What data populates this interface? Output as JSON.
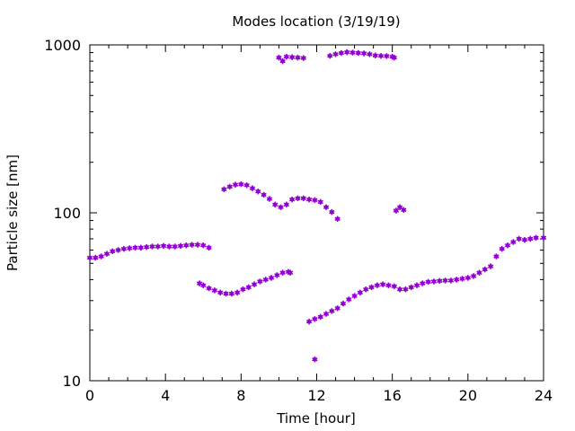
{
  "chart_data": {
    "type": "scatter",
    "title": "Modes location (3/19/19)",
    "xlabel": "Time [hour]",
    "ylabel": "Particle size [nm]",
    "xlim": [
      0,
      24
    ],
    "ylim": [
      10,
      1000
    ],
    "yscale": "log",
    "grid": false,
    "x_ticks": [
      0,
      4,
      8,
      12,
      16,
      20,
      24
    ],
    "x_tick_labels": [
      "0",
      "4",
      "8",
      "12",
      "16",
      "20",
      "24"
    ],
    "y_ticks": [
      10,
      100,
      1000
    ],
    "y_tick_labels": [
      "10",
      "100",
      "1000"
    ],
    "marker_color": "#9400D3",
    "series": [
      {
        "points": [
          [
            0.0,
            54
          ],
          [
            0.3,
            54
          ],
          [
            0.6,
            55
          ],
          [
            0.9,
            57
          ],
          [
            1.2,
            59
          ],
          [
            1.5,
            60
          ],
          [
            1.8,
            61
          ],
          [
            2.1,
            61.5
          ],
          [
            2.4,
            62
          ],
          [
            2.7,
            62
          ],
          [
            3.0,
            62.5
          ],
          [
            3.3,
            63
          ],
          [
            3.6,
            63
          ],
          [
            3.9,
            63.5
          ],
          [
            4.2,
            63
          ],
          [
            4.5,
            63
          ],
          [
            4.8,
            63.5
          ],
          [
            5.1,
            64
          ],
          [
            5.4,
            64.5
          ],
          [
            5.7,
            64.5
          ],
          [
            6.0,
            64
          ],
          [
            6.3,
            62
          ],
          [
            5.8,
            38
          ],
          [
            6.0,
            37
          ],
          [
            6.3,
            35.5
          ],
          [
            6.6,
            34.5
          ],
          [
            6.9,
            33.5
          ],
          [
            7.2,
            33
          ],
          [
            7.5,
            33
          ],
          [
            7.8,
            33.5
          ],
          [
            8.1,
            35
          ],
          [
            8.4,
            36
          ],
          [
            8.7,
            37.5
          ],
          [
            9.0,
            39
          ],
          [
            9.3,
            40
          ],
          [
            9.6,
            41
          ],
          [
            9.9,
            42.5
          ],
          [
            10.2,
            44
          ],
          [
            10.5,
            44.5
          ],
          [
            10.6,
            44
          ],
          [
            7.1,
            138
          ],
          [
            7.4,
            143
          ],
          [
            7.7,
            147
          ],
          [
            8.0,
            148
          ],
          [
            8.3,
            146
          ],
          [
            8.6,
            140
          ],
          [
            8.9,
            134
          ],
          [
            9.2,
            128
          ],
          [
            9.5,
            121
          ],
          [
            9.8,
            112
          ],
          [
            10.1,
            108
          ],
          [
            10.4,
            112
          ],
          [
            10.7,
            120
          ],
          [
            11.0,
            122
          ],
          [
            11.3,
            122
          ],
          [
            11.6,
            120
          ],
          [
            11.9,
            119
          ],
          [
            12.2,
            116
          ],
          [
            12.5,
            108
          ],
          [
            12.8,
            101
          ],
          [
            13.1,
            92
          ],
          [
            11.6,
            22.5
          ],
          [
            11.9,
            23.3
          ],
          [
            12.2,
            24
          ],
          [
            12.5,
            25
          ],
          [
            12.8,
            26
          ],
          [
            13.1,
            27
          ],
          [
            13.4,
            28.8
          ],
          [
            13.7,
            30.5
          ],
          [
            14.0,
            32
          ],
          [
            14.3,
            33.5
          ],
          [
            14.6,
            35
          ],
          [
            14.9,
            36
          ],
          [
            15.2,
            37
          ],
          [
            15.5,
            37.5
          ],
          [
            15.8,
            37
          ],
          [
            16.1,
            36.5
          ],
          [
            16.4,
            35
          ],
          [
            16.7,
            35
          ],
          [
            17.0,
            36
          ],
          [
            17.3,
            37
          ],
          [
            17.6,
            38
          ],
          [
            17.9,
            38.8
          ],
          [
            18.2,
            39
          ],
          [
            18.5,
            39.3
          ],
          [
            18.8,
            39.5
          ],
          [
            19.1,
            39.5
          ],
          [
            19.4,
            40
          ],
          [
            19.7,
            40.5
          ],
          [
            20.0,
            41
          ],
          [
            20.3,
            42
          ],
          [
            20.6,
            44
          ],
          [
            20.9,
            46
          ],
          [
            21.2,
            48
          ],
          [
            21.5,
            55
          ],
          [
            21.8,
            61
          ],
          [
            22.1,
            64
          ],
          [
            22.4,
            67
          ],
          [
            22.7,
            70
          ],
          [
            23.0,
            69
          ],
          [
            23.3,
            70
          ],
          [
            23.6,
            71
          ],
          [
            24.0,
            71
          ],
          [
            11.9,
            13.4
          ],
          [
            10.0,
            840
          ],
          [
            10.2,
            800
          ],
          [
            10.4,
            850
          ],
          [
            10.7,
            845
          ],
          [
            11.0,
            840
          ],
          [
            11.3,
            835
          ],
          [
            12.7,
            860
          ],
          [
            13.0,
            880
          ],
          [
            13.3,
            895
          ],
          [
            13.6,
            905
          ],
          [
            13.9,
            900
          ],
          [
            14.2,
            895
          ],
          [
            14.5,
            890
          ],
          [
            14.8,
            880
          ],
          [
            15.1,
            865
          ],
          [
            15.4,
            860
          ],
          [
            15.7,
            858
          ],
          [
            16.0,
            850
          ],
          [
            16.1,
            840
          ],
          [
            16.2,
            103
          ],
          [
            16.4,
            108
          ],
          [
            16.6,
            104
          ]
        ]
      }
    ]
  }
}
